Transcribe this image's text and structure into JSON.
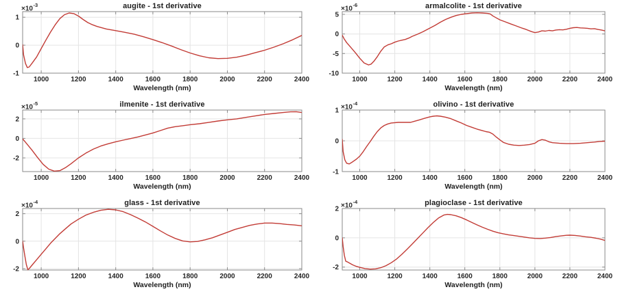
{
  "style": {
    "background": "#ffffff",
    "line_color": "#c23b35",
    "grid_color": "#e4e4e4",
    "axis_color": "#8a8a8a",
    "tick_label_color": "#262626",
    "title_color": "#1d1d1d"
  },
  "chart_data": [
    {
      "type": "line",
      "title": "augite - 1st derivative",
      "xlabel": "Wavelength (nm)",
      "exp_base": "×10",
      "exp_power": "-3",
      "legend": "none",
      "grid": true,
      "xlim": [
        900,
        2400
      ],
      "ylim": [
        -1,
        1.2
      ],
      "xticks": [
        1000,
        1200,
        1400,
        1600,
        1800,
        2000,
        2200,
        2400
      ],
      "yticks": [
        -1,
        0,
        1
      ],
      "series": [
        {
          "name": "1st derivative",
          "x": [
            900,
            905,
            915,
            925,
            935,
            950,
            975,
            1000,
            1025,
            1050,
            1075,
            1100,
            1125,
            1150,
            1175,
            1200,
            1225,
            1250,
            1275,
            1300,
            1350,
            1400,
            1450,
            1500,
            1550,
            1600,
            1650,
            1700,
            1750,
            1800,
            1850,
            1900,
            1950,
            2000,
            2050,
            2100,
            2150,
            2200,
            2250,
            2300,
            2350,
            2400
          ],
          "y": [
            0.02,
            -0.35,
            -0.65,
            -0.8,
            -0.78,
            -0.65,
            -0.42,
            -0.12,
            0.18,
            0.47,
            0.73,
            0.95,
            1.09,
            1.15,
            1.13,
            1.04,
            0.92,
            0.81,
            0.73,
            0.67,
            0.58,
            0.52,
            0.46,
            0.39,
            0.3,
            0.2,
            0.09,
            -0.03,
            -0.16,
            -0.28,
            -0.38,
            -0.45,
            -0.48,
            -0.47,
            -0.43,
            -0.36,
            -0.27,
            -0.18,
            -0.07,
            0.05,
            0.19,
            0.35
          ]
        }
      ]
    },
    {
      "type": "line",
      "title": "armalcolite - 1st derivative",
      "xlabel": "Wavelength (nm)",
      "exp_base": "×10",
      "exp_power": "-6",
      "legend": "none",
      "grid": true,
      "xlim": [
        900,
        2400
      ],
      "ylim": [
        -10,
        5.7
      ],
      "xticks": [
        1000,
        1200,
        1400,
        1600,
        1800,
        2000,
        2200,
        2400
      ],
      "yticks": [
        -10,
        -5,
        0,
        5
      ],
      "series": [
        {
          "name": "1st derivative",
          "x": [
            900,
            910,
            925,
            950,
            975,
            1000,
            1025,
            1050,
            1065,
            1080,
            1100,
            1120,
            1140,
            1160,
            1180,
            1200,
            1220,
            1240,
            1260,
            1280,
            1300,
            1330,
            1360,
            1400,
            1430,
            1460,
            1490,
            1520,
            1550,
            1580,
            1610,
            1640,
            1670,
            1700,
            1730,
            1745,
            1760,
            1780,
            1800,
            1830,
            1860,
            1890,
            1920,
            1950,
            1980,
            2000,
            2020,
            2040,
            2060,
            2080,
            2100,
            2120,
            2140,
            2160,
            2180,
            2200,
            2220,
            2240,
            2260,
            2280,
            2300,
            2320,
            2340,
            2360,
            2380,
            2400
          ],
          "y": [
            -0.3,
            -1.2,
            -2.2,
            -3.5,
            -4.8,
            -6.2,
            -7.4,
            -7.9,
            -7.7,
            -7.0,
            -5.8,
            -4.4,
            -3.3,
            -2.8,
            -2.5,
            -2.1,
            -1.8,
            -1.6,
            -1.4,
            -1.05,
            -0.6,
            -0.05,
            0.55,
            1.5,
            2.2,
            3.0,
            3.7,
            4.25,
            4.7,
            5.0,
            5.2,
            5.35,
            5.4,
            5.35,
            5.25,
            5.1,
            4.6,
            4.1,
            3.6,
            3.1,
            2.6,
            2.1,
            1.6,
            1.15,
            0.6,
            0.35,
            0.5,
            0.8,
            0.72,
            0.9,
            0.8,
            1.0,
            1.1,
            1.05,
            1.2,
            1.45,
            1.6,
            1.65,
            1.55,
            1.5,
            1.45,
            1.3,
            1.35,
            1.15,
            1.0,
            0.8
          ]
        }
      ]
    },
    {
      "type": "line",
      "title": "ilmenite - 1st derivative",
      "xlabel": "Wavelength (nm)",
      "exp_base": "×10",
      "exp_power": "-5",
      "legend": "none",
      "grid": true,
      "xlim": [
        900,
        2400
      ],
      "ylim": [
        -3.4,
        2.9
      ],
      "xticks": [
        1000,
        1200,
        1400,
        1600,
        1800,
        2000,
        2200,
        2400
      ],
      "yticks": [
        -2,
        0,
        2
      ],
      "series": [
        {
          "name": "1st derivative",
          "x": [
            900,
            920,
            950,
            980,
            1010,
            1040,
            1070,
            1100,
            1130,
            1160,
            1200,
            1240,
            1280,
            1320,
            1360,
            1400,
            1440,
            1480,
            1520,
            1560,
            1600,
            1640,
            1680,
            1720,
            1760,
            1800,
            1850,
            1900,
            1950,
            2000,
            2050,
            2100,
            2150,
            2200,
            2250,
            2300,
            2340,
            2370,
            2400
          ],
          "y": [
            -0.05,
            -0.5,
            -1.2,
            -1.95,
            -2.65,
            -3.15,
            -3.35,
            -3.3,
            -3.0,
            -2.6,
            -2.0,
            -1.5,
            -1.1,
            -0.78,
            -0.55,
            -0.35,
            -0.18,
            -0.02,
            0.15,
            0.35,
            0.55,
            0.8,
            1.05,
            1.2,
            1.3,
            1.4,
            1.5,
            1.63,
            1.78,
            1.9,
            2.0,
            2.15,
            2.3,
            2.45,
            2.55,
            2.65,
            2.72,
            2.73,
            2.65
          ]
        }
      ]
    },
    {
      "type": "line",
      "title": "olivino - 1st derivative",
      "xlabel": "Wavelength (nm)",
      "exp_base": "×10",
      "exp_power": "-4",
      "legend": "none",
      "grid": true,
      "xlim": [
        900,
        2400
      ],
      "ylim": [
        -1,
        1
      ],
      "xticks": [
        1000,
        1200,
        1400,
        1600,
        1800,
        2000,
        2200,
        2400
      ],
      "yticks": [
        -1,
        0,
        1
      ],
      "series": [
        {
          "name": "1st derivative",
          "x": [
            900,
            905,
            915,
            925,
            940,
            960,
            980,
            1000,
            1020,
            1040,
            1060,
            1080,
            1100,
            1120,
            1140,
            1160,
            1180,
            1220,
            1260,
            1290,
            1310,
            1340,
            1370,
            1400,
            1420,
            1440,
            1460,
            1490,
            1520,
            1550,
            1580,
            1610,
            1640,
            1670,
            1700,
            1720,
            1740,
            1760,
            1780,
            1800,
            1820,
            1850,
            1880,
            1910,
            1940,
            1970,
            2000,
            2020,
            2040,
            2060,
            2080,
            2100,
            2140,
            2180,
            2220,
            2260,
            2300,
            2340,
            2370,
            2400
          ],
          "y": [
            0.05,
            -0.35,
            -0.62,
            -0.73,
            -0.75,
            -0.68,
            -0.6,
            -0.5,
            -0.35,
            -0.18,
            -0.02,
            0.15,
            0.3,
            0.42,
            0.5,
            0.55,
            0.58,
            0.6,
            0.6,
            0.6,
            0.63,
            0.68,
            0.73,
            0.78,
            0.8,
            0.81,
            0.8,
            0.77,
            0.72,
            0.65,
            0.58,
            0.5,
            0.44,
            0.38,
            0.33,
            0.3,
            0.28,
            0.22,
            0.12,
            0.03,
            -0.05,
            -0.11,
            -0.14,
            -0.15,
            -0.14,
            -0.12,
            -0.08,
            0.0,
            0.04,
            0.02,
            -0.03,
            -0.06,
            -0.08,
            -0.09,
            -0.09,
            -0.08,
            -0.06,
            -0.04,
            -0.02,
            -0.01
          ]
        }
      ]
    },
    {
      "type": "line",
      "title": "glass - 1st derivative",
      "xlabel": "Wavelength (nm)",
      "exp_base": "×10",
      "exp_power": "-4",
      "legend": "none",
      "grid": true,
      "xlim": [
        900,
        2400
      ],
      "ylim": [
        -2.1,
        2.38
      ],
      "xticks": [
        1000,
        1200,
        1400,
        1600,
        1800,
        2000,
        2200,
        2400
      ],
      "yticks": [
        -2,
        0,
        2
      ],
      "series": [
        {
          "name": "1st derivative",
          "x": [
            900,
            905,
            912,
            920,
            928,
            935,
            950,
            975,
            1000,
            1025,
            1050,
            1075,
            1100,
            1130,
            1160,
            1200,
            1240,
            1280,
            1320,
            1360,
            1400,
            1440,
            1480,
            1520,
            1560,
            1600,
            1640,
            1680,
            1720,
            1760,
            1800,
            1840,
            1880,
            1920,
            1960,
            2000,
            2040,
            2080,
            2120,
            2160,
            2200,
            2240,
            2280,
            2320,
            2360,
            2400
          ],
          "y": [
            0.0,
            -0.5,
            -1.1,
            -1.7,
            -2.08,
            -2.0,
            -1.75,
            -1.35,
            -0.95,
            -0.55,
            -0.15,
            0.2,
            0.55,
            0.9,
            1.25,
            1.6,
            1.9,
            2.1,
            2.25,
            2.32,
            2.28,
            2.15,
            1.93,
            1.68,
            1.4,
            1.08,
            0.75,
            0.45,
            0.2,
            0.02,
            -0.05,
            -0.02,
            0.1,
            0.25,
            0.45,
            0.65,
            0.85,
            1.0,
            1.15,
            1.25,
            1.32,
            1.32,
            1.28,
            1.22,
            1.18,
            1.12
          ]
        }
      ]
    },
    {
      "type": "line",
      "title": "plagioclase - 1st derivative",
      "xlabel": "Wavelength (nm)",
      "exp_base": "×10",
      "exp_power": "-4",
      "legend": "none",
      "grid": true,
      "xlim": [
        900,
        2400
      ],
      "ylim": [
        -2.2,
        2
      ],
      "xticks": [
        1000,
        1200,
        1400,
        1600,
        1800,
        2000,
        2200,
        2400
      ],
      "yticks": [
        -2,
        0,
        2
      ],
      "series": [
        {
          "name": "1st derivative",
          "x": [
            900,
            905,
            912,
            920,
            930,
            945,
            960,
            980,
            1000,
            1030,
            1060,
            1090,
            1120,
            1150,
            1180,
            1210,
            1240,
            1270,
            1300,
            1330,
            1360,
            1390,
            1420,
            1450,
            1480,
            1500,
            1520,
            1550,
            1580,
            1610,
            1640,
            1670,
            1700,
            1730,
            1760,
            1790,
            1820,
            1850,
            1880,
            1910,
            1940,
            1970,
            2000,
            2030,
            2060,
            2090,
            2120,
            2150,
            2180,
            2200,
            2230,
            2260,
            2290,
            2320,
            2350,
            2375,
            2400
          ],
          "y": [
            0.0,
            -0.6,
            -1.2,
            -1.6,
            -1.65,
            -1.75,
            -1.85,
            -1.95,
            -2.02,
            -2.1,
            -2.14,
            -2.12,
            -2.04,
            -1.9,
            -1.7,
            -1.45,
            -1.13,
            -0.78,
            -0.42,
            -0.05,
            0.33,
            0.7,
            1.05,
            1.35,
            1.55,
            1.6,
            1.58,
            1.5,
            1.38,
            1.22,
            1.05,
            0.88,
            0.72,
            0.58,
            0.45,
            0.35,
            0.27,
            0.2,
            0.15,
            0.1,
            0.05,
            0.0,
            -0.04,
            -0.05,
            -0.02,
            0.02,
            0.08,
            0.13,
            0.17,
            0.18,
            0.16,
            0.12,
            0.07,
            0.03,
            -0.03,
            -0.09,
            -0.18
          ]
        }
      ]
    }
  ]
}
